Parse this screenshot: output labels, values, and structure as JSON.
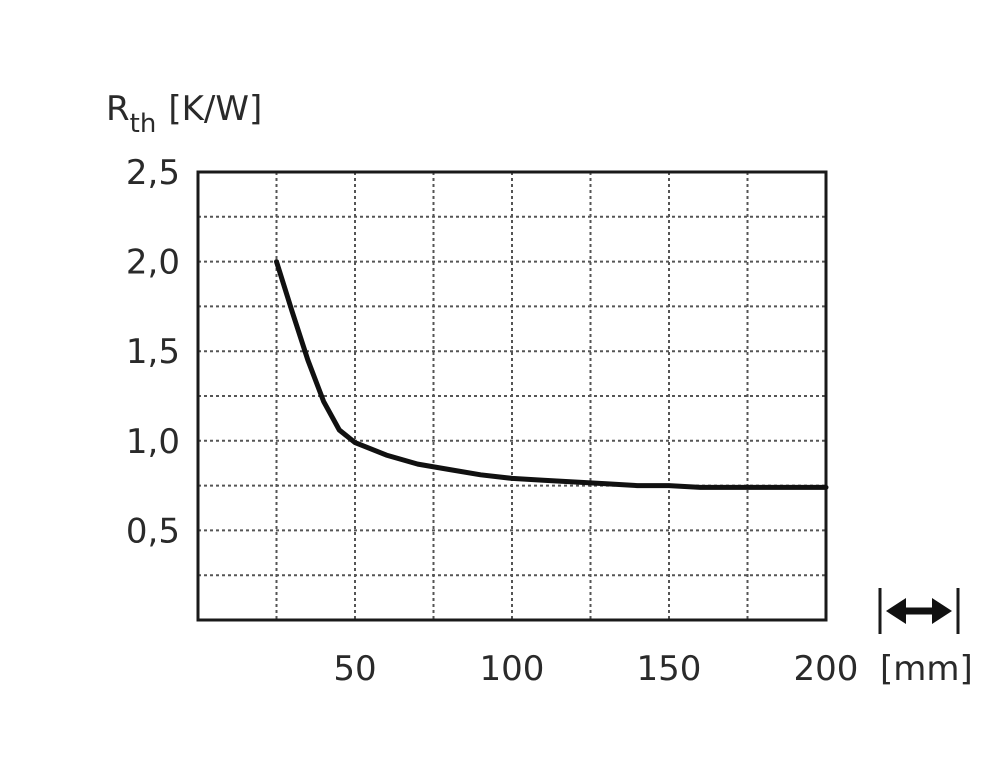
{
  "chart_data": {
    "type": "line",
    "ylabel_main": "R",
    "ylabel_sub": "th",
    "ylabel_unit": "[K/W]",
    "xlabel_unit": "[mm]",
    "xlim": [
      0,
      200
    ],
    "ylim": [
      0,
      2.5
    ],
    "x_ticks": [
      {
        "value": 50,
        "label": "50"
      },
      {
        "value": 100,
        "label": "100"
      },
      {
        "value": 150,
        "label": "150"
      },
      {
        "value": 200,
        "label": "200"
      }
    ],
    "y_ticks": [
      {
        "value": 0.5,
        "label": "0,5"
      },
      {
        "value": 1.0,
        "label": "1,0"
      },
      {
        "value": 1.5,
        "label": "1,5"
      },
      {
        "value": 2.0,
        "label": "2,0"
      },
      {
        "value": 2.5,
        "label": "2,5"
      }
    ],
    "x_grid_step": 25,
    "y_grid_step": 0.25,
    "grid": true,
    "series": [
      {
        "x": [
          25,
          30,
          35,
          40,
          45,
          50,
          60,
          70,
          80,
          90,
          100,
          110,
          120,
          130,
          140,
          150,
          160,
          175,
          200
        ],
        "y": [
          2.0,
          1.72,
          1.45,
          1.22,
          1.06,
          0.99,
          0.92,
          0.87,
          0.84,
          0.81,
          0.79,
          0.78,
          0.77,
          0.76,
          0.75,
          0.75,
          0.74,
          0.74,
          0.74
        ]
      }
    ],
    "length_indicator_icon": "double-arrow-icon"
  }
}
